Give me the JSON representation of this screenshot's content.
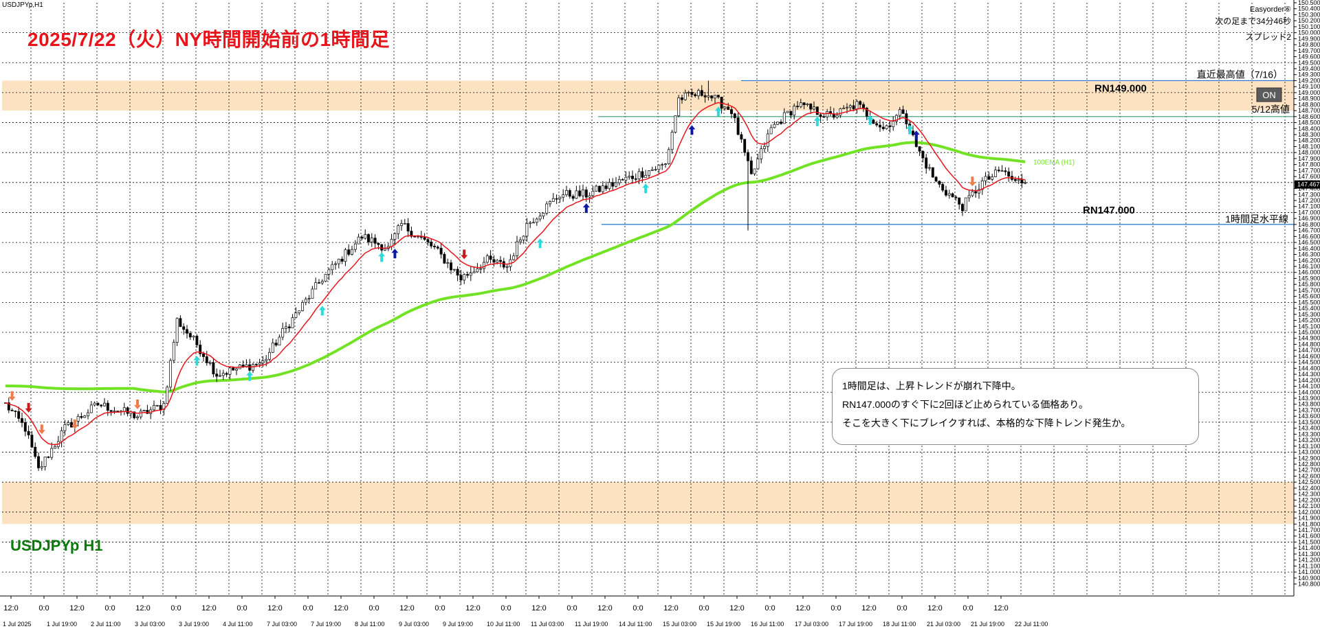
{
  "window": {
    "symbol_label": "USDJPYp,H1",
    "title_annotation": "2025/7/22（火）NY時間開始前の1時間足",
    "symbol_big": "USDJPYp H1"
  },
  "info_panel": {
    "line1": "Easyorder⑥",
    "line2": "次の足まで34分46秒",
    "line3": "スプレッド2"
  },
  "annotation_box": {
    "lines": [
      "1時間足は、上昇トレンドが崩れ下降中。",
      "RN147.000のすぐ下に2回ほど止められている価格あり。",
      "そこを大きく下にブレイクすれば、本格的な下降トレンド発生か。"
    ]
  },
  "colors": {
    "zone": "#fde3c2",
    "ema_fast": "#e8141b",
    "ema_slow": "#72e324",
    "level_line": "#1e73d2",
    "candle": "#000000",
    "grid": "#000000",
    "arrow_up_cyan": "#2fd9d9",
    "arrow_up_blue": "#0d18a8",
    "arrow_down_red": "#c81a1a",
    "arrow_down_orange": "#f07c4a",
    "title": "#e8141b",
    "symbol": "#0a7a0a"
  },
  "chart_data": {
    "type": "candlestick",
    "ylim": [
      140.6,
      150.5
    ],
    "y_ticks": [
      "150.500",
      "150.400",
      "150.300",
      "150.200",
      "150.100",
      "150.000",
      "149.900",
      "149.800",
      "149.700",
      "149.600",
      "149.500",
      "149.400",
      "149.300",
      "149.200",
      "149.100",
      "149.000",
      "148.900",
      "148.800",
      "148.700",
      "148.600",
      "148.500",
      "148.400",
      "148.300",
      "148.200",
      "148.100",
      "148.000",
      "147.900",
      "147.800",
      "147.700",
      "147.600",
      "147.500",
      "147.400",
      "147.300",
      "147.200",
      "147.100",
      "147.000",
      "146.900",
      "146.800",
      "146.700",
      "146.600",
      "146.500",
      "146.400",
      "146.300",
      "146.200",
      "146.100",
      "146.000",
      "145.900",
      "145.800",
      "145.700",
      "145.600",
      "145.500",
      "145.400",
      "145.300",
      "145.200",
      "145.100",
      "145.000",
      "144.900",
      "144.800",
      "144.700",
      "144.600",
      "144.500",
      "144.400",
      "144.300",
      "144.200",
      "144.100",
      "144.000",
      "143.900",
      "143.800",
      "143.700",
      "143.600",
      "143.500",
      "143.400",
      "143.300",
      "143.200",
      "143.100",
      "143.000",
      "142.900",
      "142.800",
      "142.700",
      "142.600",
      "142.500",
      "142.400",
      "142.300",
      "142.200",
      "142.100",
      "142.000",
      "141.900",
      "141.800",
      "141.700",
      "141.600",
      "141.500",
      "141.400",
      "141.300",
      "141.200",
      "141.100",
      "141.000",
      "140.900",
      "140.800"
    ],
    "x_ticks_upper": [
      "12:0",
      "0:0",
      "12:0",
      "0:0",
      "12:0",
      "0:0",
      "12:0",
      "0:0",
      "12:0",
      "0:0",
      "12:0",
      "0:0",
      "12:0",
      "0:0",
      "12:0",
      "0:0",
      "12:0",
      "0:0",
      "12:0",
      "0:0",
      "12:0",
      "0:0",
      "12:0",
      "0:0",
      "12:0",
      "0:0",
      "12:0",
      "0:0",
      "12:0",
      "0:0",
      "12:0"
    ],
    "x_ticks_lower": [
      "1 Jul 2025",
      "1 Jul 19:00",
      "2 Jul 11:00",
      "3 Jul 03:00",
      "3 Jul 19:00",
      "4 Jul 11:00",
      "7 Jul 03:00",
      "7 Jul 19:00",
      "8 Jul 11:00",
      "9 Jul 03:00",
      "9 Jul 19:00",
      "10 Jul 11:00",
      "11 Jul 03:00",
      "11 Jul 19:00",
      "14 Jul 11:00",
      "15 Jul 03:00",
      "15 Jul 19:00",
      "16 Jul 11:00",
      "17 Jul 03:00",
      "17 Jul 19:00",
      "18 Jul 11:00",
      "21 Jul 03:00",
      "21 Jul 19:00",
      "22 Jul 11:00"
    ],
    "current_price": "147.467",
    "zones": [
      {
        "low": 148.7,
        "high": 149.2
      },
      {
        "low": 141.8,
        "high": 142.5
      }
    ],
    "levels": [
      {
        "value": 149.2,
        "label": "直近最高値（7/16）",
        "rn_label": "RN149.000"
      },
      {
        "value": 148.6,
        "label": "5/12高値"
      },
      {
        "value": 146.8,
        "label": "1時間足水平線",
        "rn_label": "RN147.000"
      }
    ],
    "button_label": "ON",
    "ema_label": "100EMA (H1)",
    "anchors": [
      {
        "bar": 0,
        "price": 143.8
      },
      {
        "bar": 6,
        "price": 143.4
      },
      {
        "bar": 10,
        "price": 142.7
      },
      {
        "bar": 18,
        "price": 143.4
      },
      {
        "bar": 28,
        "price": 143.8
      },
      {
        "bar": 40,
        "price": 143.6
      },
      {
        "bar": 48,
        "price": 143.8
      },
      {
        "bar": 52,
        "price": 145.2
      },
      {
        "bar": 58,
        "price": 144.8
      },
      {
        "bar": 64,
        "price": 144.3
      },
      {
        "bar": 78,
        "price": 144.5
      },
      {
        "bar": 84,
        "price": 145.0
      },
      {
        "bar": 96,
        "price": 145.9
      },
      {
        "bar": 108,
        "price": 146.6
      },
      {
        "bar": 116,
        "price": 146.4
      },
      {
        "bar": 120,
        "price": 146.8
      },
      {
        "bar": 130,
        "price": 146.4
      },
      {
        "bar": 138,
        "price": 145.9
      },
      {
        "bar": 146,
        "price": 146.2
      },
      {
        "bar": 152,
        "price": 146.1
      },
      {
        "bar": 158,
        "price": 146.8
      },
      {
        "bar": 168,
        "price": 147.3
      },
      {
        "bar": 176,
        "price": 147.3
      },
      {
        "bar": 190,
        "price": 147.6
      },
      {
        "bar": 200,
        "price": 147.8
      },
      {
        "bar": 204,
        "price": 148.9
      },
      {
        "bar": 212,
        "price": 149.0
      },
      {
        "bar": 220,
        "price": 148.7
      },
      {
        "bar": 226,
        "price": 147.6
      },
      {
        "bar": 232,
        "price": 148.4
      },
      {
        "bar": 240,
        "price": 148.8
      },
      {
        "bar": 250,
        "price": 148.6
      },
      {
        "bar": 258,
        "price": 148.8
      },
      {
        "bar": 266,
        "price": 148.4
      },
      {
        "bar": 272,
        "price": 148.7
      },
      {
        "bar": 276,
        "price": 148.1
      },
      {
        "bar": 282,
        "price": 147.5
      },
      {
        "bar": 290,
        "price": 147.1
      },
      {
        "bar": 296,
        "price": 147.5
      },
      {
        "bar": 302,
        "price": 147.7
      },
      {
        "bar": 306,
        "price": 147.5
      }
    ],
    "signals": [
      {
        "bar": 2,
        "dir": "down",
        "color": "arrow_down_orange"
      },
      {
        "bar": 7,
        "dir": "down",
        "color": "arrow_down_red"
      },
      {
        "bar": 11,
        "dir": "down",
        "color": "arrow_down_orange"
      },
      {
        "bar": 21,
        "dir": "down",
        "color": "arrow_down_orange"
      },
      {
        "bar": 40,
        "dir": "down",
        "color": "arrow_down_orange"
      },
      {
        "bar": 58,
        "dir": "up",
        "color": "arrow_up_cyan"
      },
      {
        "bar": 74,
        "dir": "up",
        "color": "arrow_up_cyan"
      },
      {
        "bar": 96,
        "dir": "up",
        "color": "arrow_up_cyan"
      },
      {
        "bar": 114,
        "dir": "up",
        "color": "arrow_up_cyan"
      },
      {
        "bar": 118,
        "dir": "up",
        "color": "arrow_up_blue"
      },
      {
        "bar": 139,
        "dir": "down",
        "color": "arrow_down_red"
      },
      {
        "bar": 162,
        "dir": "up",
        "color": "arrow_up_cyan"
      },
      {
        "bar": 176,
        "dir": "up",
        "color": "arrow_up_blue"
      },
      {
        "bar": 194,
        "dir": "up",
        "color": "arrow_up_cyan"
      },
      {
        "bar": 208,
        "dir": "up",
        "color": "arrow_up_blue"
      },
      {
        "bar": 216,
        "dir": "up",
        "color": "arrow_up_cyan"
      },
      {
        "bar": 246,
        "dir": "up",
        "color": "arrow_up_cyan"
      },
      {
        "bar": 262,
        "dir": "up",
        "color": "arrow_up_cyan"
      },
      {
        "bar": 274,
        "dir": "up",
        "color": "arrow_up_cyan"
      },
      {
        "bar": 276,
        "dir": "up",
        "color": "arrow_up_blue"
      },
      {
        "bar": 293,
        "dir": "down",
        "color": "arrow_down_orange"
      }
    ]
  }
}
